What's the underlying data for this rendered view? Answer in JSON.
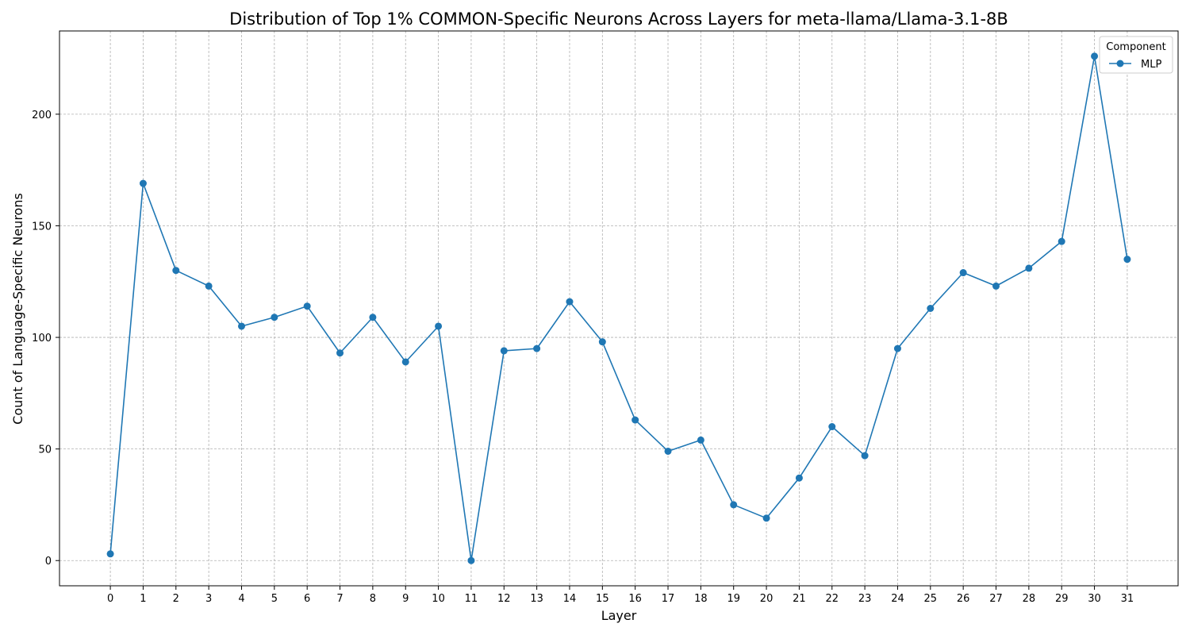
{
  "chart_data": {
    "type": "line",
    "title": "Distribution of Top 1% COMMON-Specific Neurons Across Layers for meta-llama/Llama-3.1-8B",
    "xlabel": "Layer",
    "ylabel": "Count of Language-Specific Neurons",
    "x": [
      0,
      1,
      2,
      3,
      4,
      5,
      6,
      7,
      8,
      9,
      10,
      11,
      12,
      13,
      14,
      15,
      16,
      17,
      18,
      19,
      20,
      21,
      22,
      23,
      24,
      25,
      26,
      27,
      28,
      29,
      30,
      31
    ],
    "xlim": [
      -1.55,
      32.55
    ],
    "ylim": [
      -11.3,
      237.3
    ],
    "yticks": [
      0,
      50,
      100,
      150,
      200
    ],
    "grid": true,
    "legend": {
      "title": "Component",
      "position": "top-right"
    },
    "series": [
      {
        "name": "MLP",
        "color": "#1f77b4",
        "marker": "circle",
        "values": [
          3,
          169,
          130,
          123,
          105,
          109,
          114,
          93,
          109,
          89,
          105,
          0,
          94,
          95,
          116,
          98,
          63,
          49,
          54,
          25,
          19,
          37,
          60,
          47,
          95,
          113,
          129,
          123,
          131,
          143,
          226,
          135
        ]
      }
    ]
  }
}
